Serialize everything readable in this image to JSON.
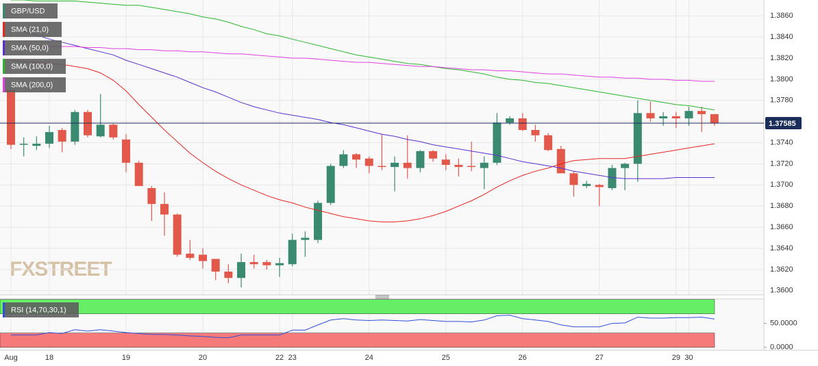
{
  "chart_data": {
    "type": "candlestick",
    "title": "GBP/USD",
    "watermark": "FXSTREET",
    "categories": [
      "Aug",
      null,
      null,
      "18",
      null,
      null,
      null,
      null,
      null,
      "19",
      null,
      null,
      null,
      null,
      null,
      "20",
      null,
      null,
      null,
      null,
      null,
      "22",
      "23",
      null,
      null,
      null,
      null,
      null,
      "24",
      null,
      null,
      null,
      null,
      null,
      "25",
      null,
      null,
      null,
      null,
      null,
      "26",
      null,
      null,
      null,
      null,
      null,
      "27",
      null,
      null,
      null,
      null,
      null,
      "29",
      "30",
      null,
      null
    ],
    "open": [
      1.379,
      1.3738,
      1.3737,
      1.3739,
      1.3752,
      1.3741,
      1.3769,
      1.3746,
      1.3757,
      1.3743,
      1.3721,
      1.3697,
      1.3682,
      1.3672,
      1.3635,
      1.3634,
      1.363,
      1.3618,
      1.3612,
      1.3627,
      1.3627,
      1.3624,
      1.3625,
      1.3648,
      1.3648,
      1.3683,
      1.3718,
      1.3729,
      1.3725,
      1.3718,
      1.3717,
      1.3721,
      1.3716,
      1.3732,
      1.3724,
      1.3719,
      1.3718,
      1.3716,
      1.3721,
      1.3759,
      1.3763,
      1.3752,
      1.3747,
      1.3734,
      1.3711,
      1.3699,
      1.37,
      1.3697,
      1.3716,
      1.372,
      1.3768,
      1.3763,
      1.3765,
      1.3763,
      1.377,
      1.3767
    ],
    "high": [
      1.3791,
      1.3745,
      1.3746,
      1.3756,
      1.3754,
      1.3771,
      1.3771,
      1.3786,
      1.3758,
      1.3748,
      1.3723,
      1.3699,
      1.3693,
      1.3673,
      1.3648,
      1.364,
      1.363,
      1.3625,
      1.3635,
      1.3634,
      1.3629,
      1.3631,
      1.3654,
      1.3656,
      1.3685,
      1.372,
      1.3733,
      1.373,
      1.3727,
      1.3748,
      1.3727,
      1.3747,
      1.3733,
      1.3733,
      1.3729,
      1.3725,
      1.3741,
      1.3727,
      1.3768,
      1.3765,
      1.3768,
      1.3757,
      1.3749,
      1.3737,
      1.3713,
      1.3704,
      1.3701,
      1.3719,
      1.3721,
      1.378,
      1.3779,
      1.3769,
      1.3769,
      1.3774,
      1.3774,
      1.3767
    ],
    "low": [
      1.3734,
      1.3727,
      1.3733,
      1.3735,
      1.3731,
      1.3738,
      1.3745,
      1.3745,
      1.3743,
      1.3712,
      1.3699,
      1.3666,
      1.3652,
      1.3632,
      1.3629,
      1.3621,
      1.361,
      1.3607,
      1.3603,
      1.3621,
      1.362,
      1.3613,
      1.3623,
      1.3632,
      1.3645,
      1.3681,
      1.3716,
      1.3716,
      1.3711,
      1.3714,
      1.3694,
      1.3706,
      1.3712,
      1.3722,
      1.3714,
      1.3708,
      1.3713,
      1.3696,
      1.3719,
      1.3757,
      1.3751,
      1.3741,
      1.3732,
      1.3711,
      1.3689,
      1.3697,
      1.368,
      1.3695,
      1.3695,
      1.3703,
      1.376,
      1.3756,
      1.3754,
      1.3756,
      1.375,
      1.3756
    ],
    "close": [
      1.3738,
      1.3739,
      1.3739,
      1.375,
      1.3741,
      1.3769,
      1.3747,
      1.3757,
      1.3745,
      1.3721,
      1.3699,
      1.3682,
      1.3672,
      1.3634,
      1.3631,
      1.3628,
      1.3618,
      1.3612,
      1.3627,
      1.3625,
      1.3624,
      1.3626,
      1.3648,
      1.365,
      1.3683,
      1.3718,
      1.3729,
      1.3724,
      1.3718,
      1.3717,
      1.3721,
      1.3716,
      1.3732,
      1.3725,
      1.3719,
      1.3717,
      1.3717,
      1.3721,
      1.3759,
      1.3763,
      1.3752,
      1.3747,
      1.3733,
      1.3711,
      1.37,
      1.3701,
      1.3698,
      1.3716,
      1.372,
      1.3768,
      1.3763,
      1.3765,
      1.3763,
      1.377,
      1.3767,
      1.37585
    ],
    "up_color": "#3a8a72",
    "down_color": "#e2584a",
    "title_color": "#3a8a72",
    "overlays": [
      {
        "name": "SMA (21,0)",
        "color": "#e8251f",
        "values": [
          1.3818,
          1.3817,
          1.3816,
          1.3815,
          1.3814,
          1.3812,
          1.381,
          1.3806,
          1.3799,
          1.3789,
          1.3776,
          1.3764,
          1.3752,
          1.3741,
          1.373,
          1.3721,
          1.3713,
          1.3706,
          1.37,
          1.3695,
          1.369,
          1.3686,
          1.3683,
          1.3679,
          1.3676,
          1.3673,
          1.367,
          1.3668,
          1.3666,
          1.3665,
          1.3665,
          1.3666,
          1.3668,
          1.3671,
          1.3675,
          1.368,
          1.3685,
          1.3691,
          1.3698,
          1.3704,
          1.3709,
          1.3713,
          1.3716,
          1.372,
          1.3723,
          1.3724,
          1.3725,
          1.3725,
          1.3725,
          1.3727,
          1.3729,
          1.3731,
          1.3733,
          1.3735,
          1.3737,
          1.3739
        ]
      },
      {
        "name": "SMA (50,0)",
        "color": "#5a2fd0",
        "values": [
          1.3848,
          1.3845,
          1.3842,
          1.3838,
          1.3835,
          1.3832,
          1.3829,
          1.3826,
          1.3823,
          1.3818,
          1.3814,
          1.381,
          1.3806,
          1.3802,
          1.3797,
          1.3792,
          1.3788,
          1.3783,
          1.3778,
          1.3774,
          1.3771,
          1.3768,
          1.3766,
          1.3764,
          1.3762,
          1.3759,
          1.3757,
          1.3754,
          1.3751,
          1.3748,
          1.3746,
          1.3743,
          1.3741,
          1.3738,
          1.3736,
          1.3734,
          1.3732,
          1.373,
          1.3728,
          1.3725,
          1.3722,
          1.372,
          1.3718,
          1.3716,
          1.3713,
          1.3711,
          1.3709,
          1.3707,
          1.3706,
          1.3706,
          1.3706,
          1.3706,
          1.3707,
          1.3707,
          1.3707,
          1.3707
        ]
      },
      {
        "name": "SMA (100,0)",
        "color": "#2bb52b",
        "values": [
          1.3875,
          1.3875,
          1.3874,
          1.3874,
          1.3874,
          1.3874,
          1.3873,
          1.3872,
          1.3871,
          1.387,
          1.387,
          1.3868,
          1.3866,
          1.3864,
          1.3862,
          1.3859,
          1.3857,
          1.3854,
          1.385,
          1.3847,
          1.3843,
          1.3841,
          1.3838,
          1.3835,
          1.3832,
          1.3829,
          1.3826,
          1.3823,
          1.3821,
          1.3819,
          1.3817,
          1.3815,
          1.3814,
          1.3812,
          1.381,
          1.3809,
          1.3807,
          1.3805,
          1.3802,
          1.38,
          1.3799,
          1.3797,
          1.3796,
          1.3794,
          1.3792,
          1.379,
          1.3788,
          1.3786,
          1.3784,
          1.3782,
          1.378,
          1.3778,
          1.3776,
          1.3775,
          1.3773,
          1.3771
        ]
      },
      {
        "name": "SMA (200,0)",
        "color": "#e040e0",
        "values": [
          1.3832,
          1.3832,
          1.3832,
          1.3831,
          1.3831,
          1.3831,
          1.383,
          1.383,
          1.3829,
          1.3829,
          1.3828,
          1.3828,
          1.3827,
          1.3827,
          1.3826,
          1.3826,
          1.3825,
          1.3824,
          1.3824,
          1.3823,
          1.3822,
          1.3821,
          1.382,
          1.382,
          1.3819,
          1.3818,
          1.3817,
          1.3816,
          1.3816,
          1.3815,
          1.3814,
          1.3813,
          1.3812,
          1.3812,
          1.3811,
          1.381,
          1.3809,
          1.3809,
          1.3808,
          1.3808,
          1.3807,
          1.3806,
          1.3805,
          1.3805,
          1.3804,
          1.3803,
          1.3802,
          1.3802,
          1.3801,
          1.3801,
          1.38,
          1.38,
          1.3799,
          1.3799,
          1.3798,
          1.3798
        ]
      }
    ],
    "last_price": 1.37585,
    "last_price_color": "#1b2d5a",
    "ylim": [
      1.3596,
      1.3875
    ],
    "yticks": [
      {
        "value": 1.36,
        "label": "1.3600"
      },
      {
        "value": 1.362,
        "label": "1.3620"
      },
      {
        "value": 1.364,
        "label": "1.3640"
      },
      {
        "value": 1.366,
        "label": "1.3660"
      },
      {
        "value": 1.368,
        "label": "1.3680"
      },
      {
        "value": 1.37,
        "label": "1.3700"
      },
      {
        "value": 1.372,
        "label": "1.3720"
      },
      {
        "value": 1.374,
        "label": "1.3740"
      },
      {
        "value": 1.376,
        "label": "1.3760"
      },
      {
        "value": 1.378,
        "label": "1.3780"
      },
      {
        "value": 1.38,
        "label": "1.3800"
      },
      {
        "value": 1.382,
        "label": "1.3820"
      },
      {
        "value": 1.384,
        "label": "1.3840"
      },
      {
        "value": 1.386,
        "label": "1.3860"
      }
    ],
    "grid": true,
    "rsi": {
      "name": "RSI (14,70,30,1)",
      "color": "#2f4fd8",
      "values": [
        26,
        26,
        26,
        31,
        29,
        37,
        34,
        37,
        34,
        31,
        29,
        27,
        27,
        26,
        24,
        23,
        21,
        20,
        26,
        26,
        26,
        26,
        36,
        36,
        47,
        57,
        60,
        57,
        56,
        57,
        56,
        55,
        58,
        56,
        54,
        54,
        53,
        57,
        66,
        67,
        60,
        57,
        54,
        47,
        43,
        43,
        43,
        50,
        51,
        63,
        61,
        61,
        62,
        62,
        63,
        59
      ],
      "ylim": [
        -6,
        101
      ],
      "yticks": [
        {
          "value": 0,
          "label": "0.0000"
        },
        {
          "value": 50,
          "label": "50.0000"
        }
      ],
      "overbought_zone": [
        70,
        100
      ],
      "overbought_color": "#66ee66",
      "oversold_zone": [
        0,
        30
      ],
      "oversold_color": "#f77a7a"
    }
  }
}
